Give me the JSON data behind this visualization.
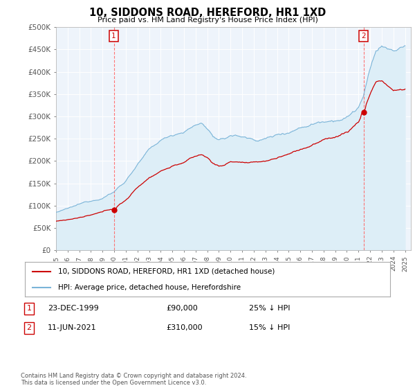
{
  "title": "10, SIDDONS ROAD, HEREFORD, HR1 1XD",
  "subtitle": "Price paid vs. HM Land Registry's House Price Index (HPI)",
  "ylim": [
    0,
    500000
  ],
  "yticks": [
    0,
    50000,
    100000,
    150000,
    200000,
    250000,
    300000,
    350000,
    400000,
    450000,
    500000
  ],
  "ytick_labels": [
    "£0",
    "£50K",
    "£100K",
    "£150K",
    "£200K",
    "£250K",
    "£300K",
    "£350K",
    "£400K",
    "£450K",
    "£500K"
  ],
  "hpi_color": "#7ab4d8",
  "hpi_fill_color": "#ddeef7",
  "price_color": "#cc0000",
  "sale1_year": 1999.97,
  "sale1_price": 90000,
  "sale2_year": 2021.44,
  "sale2_price": 310000,
  "legend_line1": "10, SIDDONS ROAD, HEREFORD, HR1 1XD (detached house)",
  "legend_line2": "HPI: Average price, detached house, Herefordshire",
  "footnote": "Contains HM Land Registry data © Crown copyright and database right 2024.\nThis data is licensed under the Open Government Licence v3.0.",
  "background_color": "#ffffff",
  "plot_bg_color": "#eef4fb",
  "grid_color": "#ffffff"
}
